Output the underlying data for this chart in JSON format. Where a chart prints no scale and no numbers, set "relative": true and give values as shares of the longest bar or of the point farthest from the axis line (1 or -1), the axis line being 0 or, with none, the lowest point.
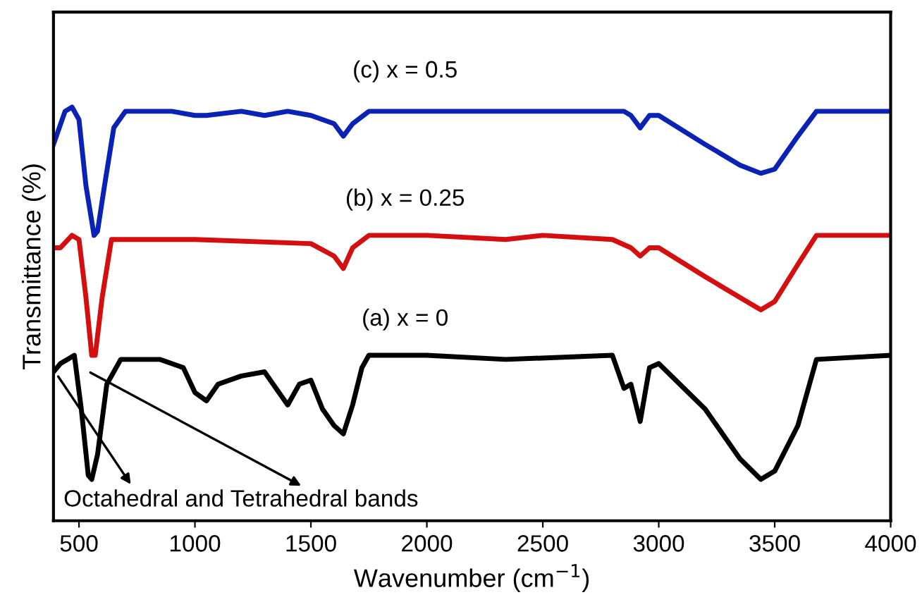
{
  "chart_data": {
    "type": "line",
    "relative": true,
    "xlabel": "Wavenumber (cm$^{−1}$)",
    "ylabel": "Transmittance (%)",
    "xlim": [
      390,
      4000
    ],
    "xticks": [
      500,
      1000,
      1500,
      2000,
      2500,
      3000,
      3500,
      4000
    ],
    "grid": false,
    "legend": false,
    "tick_labels": "x",
    "line_style": "solid",
    "marker": "none",
    "annotations": [
      "Octahedral and Tetrahedral bands"
    ],
    "series": [
      {
        "name": "(c) x = 0.5",
        "color": "#0a23b4",
        "x": [
          390,
          440,
          470,
          500,
          530,
          565,
          580,
          610,
          650,
          700,
          800,
          900,
          1000,
          1050,
          1200,
          1300,
          1400,
          1500,
          1600,
          1640,
          1680,
          1750,
          2000,
          2340,
          2500,
          2850,
          2880,
          2920,
          2960,
          3000,
          3200,
          3350,
          3440,
          3500,
          3600,
          3680,
          4000
        ],
        "values": [
          0.91,
          0.99,
          1.0,
          0.97,
          0.81,
          0.69,
          0.7,
          0.81,
          0.95,
          0.99,
          0.99,
          0.99,
          0.98,
          0.98,
          0.99,
          0.98,
          0.99,
          0.98,
          0.96,
          0.93,
          0.96,
          0.99,
          0.99,
          0.99,
          0.99,
          0.99,
          0.98,
          0.95,
          0.98,
          0.98,
          0.91,
          0.86,
          0.84,
          0.85,
          0.93,
          0.99,
          0.99
        ]
      },
      {
        "name": "(b) x = 0.25",
        "color": "#d40f0f",
        "x": [
          390,
          420,
          470,
          500,
          530,
          555,
          570,
          600,
          640,
          700,
          1000,
          1500,
          1600,
          1640,
          1680,
          1750,
          2000,
          2340,
          2500,
          2800,
          2880,
          2920,
          2960,
          3000,
          3200,
          3350,
          3440,
          3500,
          3600,
          3680,
          4000
        ],
        "values": [
          0.66,
          0.66,
          0.69,
          0.68,
          0.54,
          0.4,
          0.4,
          0.54,
          0.68,
          0.68,
          0.68,
          0.67,
          0.64,
          0.61,
          0.66,
          0.69,
          0.69,
          0.68,
          0.69,
          0.68,
          0.66,
          0.64,
          0.66,
          0.66,
          0.59,
          0.54,
          0.51,
          0.53,
          0.62,
          0.69,
          0.69
        ]
      },
      {
        "name": "(a) x = 0",
        "color": "#000000",
        "x": [
          390,
          420,
          450,
          480,
          510,
          540,
          555,
          580,
          620,
          680,
          750,
          850,
          950,
          1000,
          1050,
          1100,
          1200,
          1300,
          1350,
          1400,
          1450,
          1500,
          1550,
          1600,
          1640,
          1680,
          1720,
          1750,
          2000,
          2340,
          2800,
          2850,
          2880,
          2920,
          2960,
          3000,
          3200,
          3350,
          3440,
          3500,
          3600,
          3680,
          4000
        ],
        "values": [
          0.36,
          0.38,
          0.39,
          0.4,
          0.27,
          0.11,
          0.1,
          0.16,
          0.33,
          0.39,
          0.39,
          0.39,
          0.37,
          0.31,
          0.29,
          0.33,
          0.35,
          0.36,
          0.32,
          0.28,
          0.33,
          0.34,
          0.27,
          0.23,
          0.21,
          0.28,
          0.37,
          0.4,
          0.4,
          0.39,
          0.4,
          0.32,
          0.33,
          0.24,
          0.37,
          0.38,
          0.27,
          0.15,
          0.1,
          0.12,
          0.23,
          0.39,
          0.4
        ]
      }
    ]
  }
}
